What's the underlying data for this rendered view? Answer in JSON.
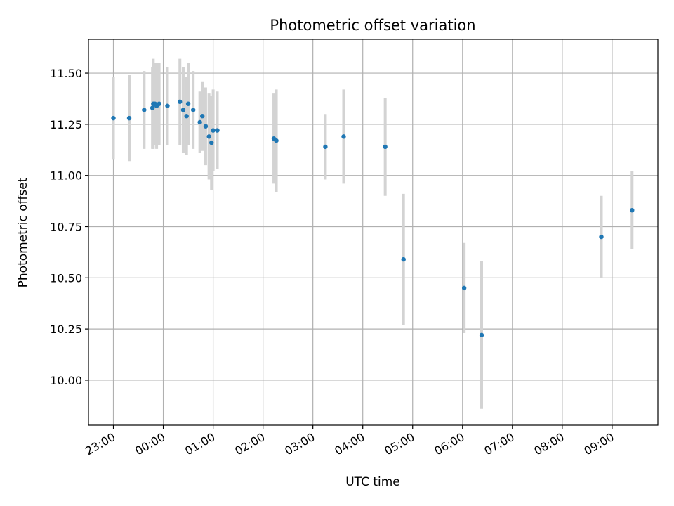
{
  "chart_data": {
    "type": "scatter",
    "title": "Photometric offset variation",
    "xlabel": "UTC time",
    "ylabel": "Photometric offset",
    "x_axis": {
      "kind": "time",
      "range": [
        "22:30",
        "09:55"
      ],
      "ticks": [
        "23:00",
        "00:00",
        "01:00",
        "02:00",
        "03:00",
        "04:00",
        "05:00",
        "06:00",
        "07:00",
        "08:00",
        "09:00"
      ],
      "tick_rotation": "30deg"
    },
    "y_axis": {
      "range": [
        9.78,
        11.665
      ],
      "ticks": [
        10.0,
        10.25,
        10.5,
        10.75,
        11.0,
        11.25,
        11.5
      ],
      "tick_labels": [
        "10.00",
        "10.25",
        "10.50",
        "10.75",
        "11.00",
        "11.25",
        "11.50"
      ]
    },
    "grid": true,
    "colors": {
      "points": "#1f77b4",
      "error_bars": "#d3d3d3",
      "grid": "#b0b0b0"
    },
    "series": [
      {
        "points": [
          {
            "x": "23:00",
            "y": 11.28,
            "err": 0.2
          },
          {
            "x": "23:19",
            "y": 11.28,
            "err": 0.21
          },
          {
            "x": "23:37",
            "y": 11.32,
            "err": 0.19
          },
          {
            "x": "23:47",
            "y": 11.33,
            "err": 0.2
          },
          {
            "x": "23:48",
            "y": 11.35,
            "err": 0.22
          },
          {
            "x": "23:50",
            "y": 11.35,
            "err": 0.2
          },
          {
            "x": "23:52",
            "y": 11.34,
            "err": 0.21
          },
          {
            "x": "23:55",
            "y": 11.35,
            "err": 0.2
          },
          {
            "x": "00:05",
            "y": 11.34,
            "err": 0.19
          },
          {
            "x": "00:20",
            "y": 11.36,
            "err": 0.21
          },
          {
            "x": "00:24",
            "y": 11.32,
            "err": 0.21
          },
          {
            "x": "00:28",
            "y": 11.29,
            "err": 0.19
          },
          {
            "x": "00:30",
            "y": 11.35,
            "err": 0.2
          },
          {
            "x": "00:36",
            "y": 11.32,
            "err": 0.19
          },
          {
            "x": "00:44",
            "y": 11.26,
            "err": 0.15
          },
          {
            "x": "00:47",
            "y": 11.29,
            "err": 0.17
          },
          {
            "x": "00:51",
            "y": 11.24,
            "err": 0.19
          },
          {
            "x": "00:55",
            "y": 11.19,
            "err": 0.21
          },
          {
            "x": "00:58",
            "y": 11.16,
            "err": 0.23
          },
          {
            "x": "01:00",
            "y": 11.22,
            "err": 0.2
          },
          {
            "x": "01:05",
            "y": 11.22,
            "err": 0.19
          },
          {
            "x": "02:13",
            "y": 11.18,
            "err": 0.22
          },
          {
            "x": "02:16",
            "y": 11.17,
            "err": 0.25
          },
          {
            "x": "03:15",
            "y": 11.14,
            "err": 0.16
          },
          {
            "x": "03:37",
            "y": 11.19,
            "err": 0.23
          },
          {
            "x": "04:27",
            "y": 11.14,
            "err": 0.24
          },
          {
            "x": "04:49",
            "y": 10.59,
            "err": 0.32
          },
          {
            "x": "06:02",
            "y": 10.45,
            "err": 0.22
          },
          {
            "x": "06:23",
            "y": 10.22,
            "err": 0.36
          },
          {
            "x": "08:47",
            "y": 10.7,
            "err": 0.2
          },
          {
            "x": "09:24",
            "y": 10.83,
            "err": 0.19
          }
        ]
      }
    ]
  }
}
